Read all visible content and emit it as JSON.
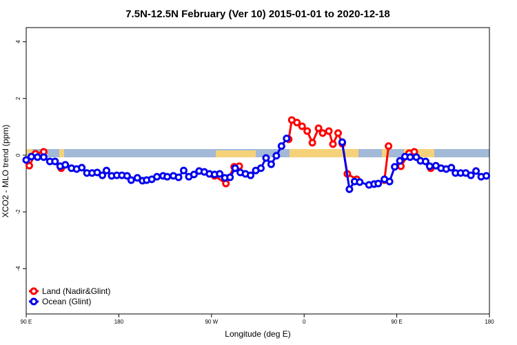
{
  "chart_data": {
    "type": "line",
    "title": "7.5N-12.5N February (Ver 10)   2015-01-01 to 2020-12-18",
    "x_label": "Longitude (deg E)",
    "y_label": "XCO2 - MLO trend (ppm)",
    "xlim": [
      90,
      540
    ],
    "ylim": [
      -5.6,
      4.5
    ],
    "xticks": [
      {
        "value": 90,
        "label": "90 E"
      },
      180,
      {
        "value": 270,
        "label": "90 W"
      },
      {
        "value": 360,
        "label": "0"
      },
      {
        "value": 450,
        "label": "90 E"
      },
      {
        "value": 540,
        "label": "180"
      }
    ],
    "yticks": [
      -4,
      -2,
      0,
      2,
      4
    ],
    "legend": "bottom-left",
    "series": [
      {
        "name": "Land (Nadir&Glint)",
        "color": "#ff0000",
        "x": [
          93,
          99,
          107,
          null,
          124,
          null,
          273,
          284,
          292,
          297,
          null,
          345,
          348,
          353,
          358,
          363,
          368,
          374,
          378,
          384,
          388,
          393,
          397,
          402,
          411,
          null,
          438,
          442,
          null,
          454,
          462,
          467,
          null,
          483
        ],
        "values": [
          -0.37,
          0.05,
          0.12,
          null,
          -0.46,
          null,
          -0.73,
          -1.0,
          -0.41,
          -0.39,
          null,
          0.56,
          1.24,
          1.15,
          1.02,
          0.85,
          0.44,
          0.95,
          0.78,
          0.85,
          0.39,
          0.78,
          0.41,
          -0.66,
          -0.85,
          null,
          -0.88,
          0.32,
          null,
          -0.39,
          0.07,
          0.12,
          null,
          -0.46
        ]
      },
      {
        "name": "Ocean (Glint)",
        "color": "#0000ee",
        "x": [
          90,
          95,
          101,
          107,
          113,
          118,
          123,
          128,
          134,
          139,
          144,
          149,
          154,
          159,
          164,
          168,
          173,
          178,
          183,
          188,
          192,
          198,
          203,
          207,
          212,
          217,
          223,
          227,
          233,
          238,
          243,
          248,
          253,
          258,
          263,
          268,
          273,
          278,
          283,
          288,
          293,
          298,
          303,
          308,
          313,
          318,
          323,
          328,
          333,
          338,
          343,
          null,
          397,
          404,
          409,
          414,
          423,
          428,
          432,
          438,
          443,
          448,
          453,
          458,
          463,
          469,
          473,
          478,
          482,
          488,
          493,
          498,
          503,
          507,
          512,
          517,
          522,
          527,
          532,
          537
        ],
        "values": [
          -0.17,
          -0.05,
          -0.07,
          -0.07,
          -0.22,
          -0.22,
          -0.39,
          -0.34,
          -0.46,
          -0.49,
          -0.44,
          -0.63,
          -0.63,
          -0.61,
          -0.71,
          -0.54,
          -0.73,
          -0.71,
          -0.71,
          -0.73,
          -0.88,
          -0.8,
          -0.9,
          -0.88,
          -0.85,
          -0.76,
          -0.73,
          -0.76,
          -0.73,
          -0.78,
          -0.54,
          -0.76,
          -0.68,
          -0.56,
          -0.59,
          -0.66,
          -0.68,
          -0.66,
          -0.8,
          -0.78,
          -0.46,
          -0.61,
          -0.66,
          -0.71,
          -0.54,
          -0.46,
          -0.1,
          -0.32,
          -0.02,
          0.32,
          0.59,
          null,
          0.46,
          -1.2,
          -0.93,
          -0.95,
          -1.05,
          -1.02,
          -1.0,
          -0.85,
          -0.93,
          -0.41,
          -0.2,
          -0.05,
          -0.07,
          -0.07,
          -0.2,
          -0.22,
          -0.39,
          -0.37,
          -0.46,
          -0.49,
          -0.44,
          -0.63,
          -0.63,
          -0.63,
          -0.71,
          -0.56,
          -0.76,
          -0.73
        ]
      }
    ]
  }
}
